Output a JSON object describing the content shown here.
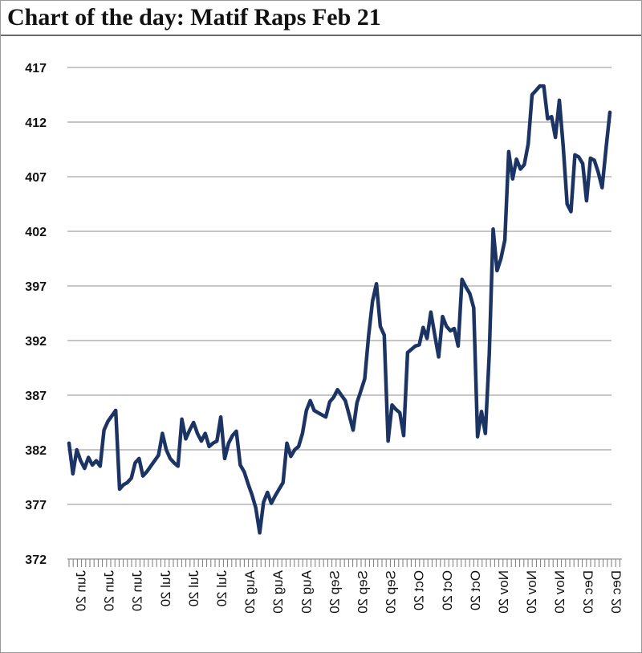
{
  "chart_data": {
    "type": "line",
    "title": "Chart of the day: Matif Raps Feb 21",
    "xlabel": "",
    "ylabel": "",
    "ylim": [
      372,
      417
    ],
    "y_ticks": [
      372,
      377,
      382,
      387,
      392,
      397,
      402,
      407,
      412,
      417
    ],
    "x_tick_labels": [
      "Jun 20",
      "Jun 20",
      "Jun 20",
      "Jul 20",
      "Jul 20",
      "Jul 20",
      "Aug 20",
      "Aug 20",
      "Aug 20",
      "Sep 20",
      "Sep 20",
      "Sep 20",
      "Oct 20",
      "Oct 20",
      "Oct 20",
      "Nov 20",
      "Nov 20",
      "Nov 20",
      "Dec 20",
      "Dec 20"
    ],
    "grid": true,
    "line_color": "#1c3463",
    "series": [
      {
        "name": "",
        "values": [
          382.6,
          379.8,
          382.0,
          381.0,
          380.3,
          381.3,
          380.6,
          381.0,
          380.5,
          383.8,
          384.6,
          385.1,
          385.6,
          378.4,
          378.8,
          379.0,
          379.4,
          380.8,
          381.2,
          379.6,
          380.0,
          380.5,
          381.0,
          381.5,
          383.5,
          382.0,
          381.2,
          380.8,
          380.5,
          384.8,
          383.0,
          383.8,
          384.5,
          383.5,
          382.8,
          383.5,
          382.3,
          382.6,
          382.8,
          385.0,
          381.2,
          382.6,
          383.3,
          383.7,
          380.6,
          380.0,
          378.9,
          377.9,
          376.7,
          374.4,
          377.2,
          378.1,
          377.1,
          377.8,
          378.4,
          379.0,
          382.6,
          381.4,
          382.0,
          382.3,
          383.5,
          385.6,
          386.5,
          385.6,
          385.4,
          385.2,
          385.0,
          386.4,
          386.8,
          387.5,
          387.0,
          386.5,
          385.2,
          383.8,
          386.3,
          387.4,
          388.5,
          392.5,
          395.6,
          397.2,
          393.3,
          392.5,
          382.8,
          386.1,
          385.7,
          385.4,
          383.3,
          390.9,
          391.2,
          391.5,
          391.6,
          393.2,
          392.2,
          394.6,
          392.5,
          390.5,
          394.2,
          393.3,
          392.9,
          393.1,
          391.5,
          397.6,
          396.9,
          396.3,
          395.0,
          383.2,
          385.5,
          383.5,
          390.8,
          402.2,
          398.4,
          399.5,
          401.2,
          409.3,
          406.8,
          408.6,
          407.7,
          408.1,
          410.0,
          414.5,
          414.9,
          415.3,
          415.3,
          412.3,
          412.5,
          410.6,
          414.0,
          409.8,
          404.5,
          403.8,
          409.0,
          408.8,
          408.2,
          404.8,
          408.7,
          408.5,
          407.4,
          406.0,
          409.6,
          412.9
        ]
      }
    ]
  }
}
